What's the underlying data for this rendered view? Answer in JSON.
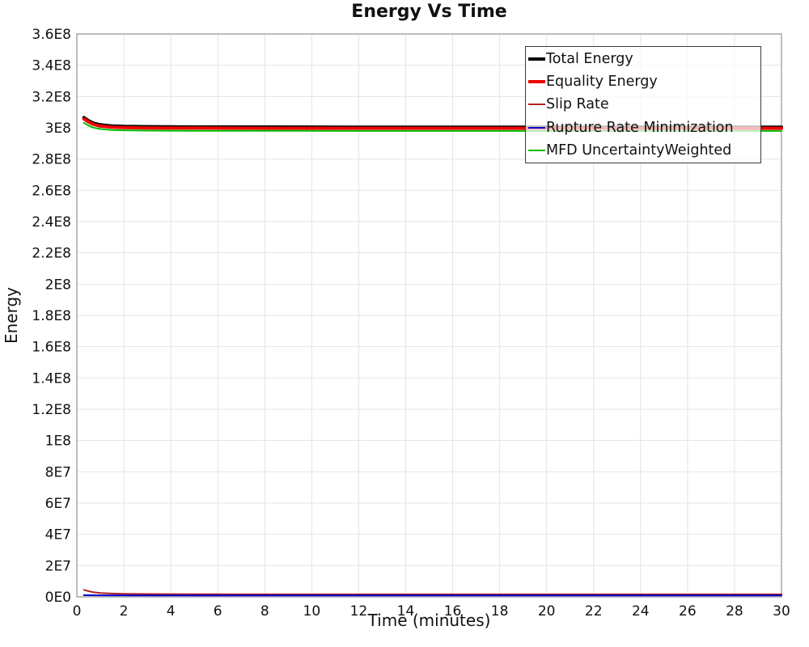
{
  "title": "Energy Vs Time",
  "chart_data": {
    "type": "line",
    "title": "Energy Vs Time",
    "xlabel": "Time (minutes)",
    "ylabel": "Energy",
    "xlim": [
      0,
      30
    ],
    "ylim": [
      0,
      360000000
    ],
    "grid": true,
    "legend_position": "top-right",
    "x_ticks": [
      {
        "v": 0,
        "label": "0"
      },
      {
        "v": 2,
        "label": "2"
      },
      {
        "v": 4,
        "label": "4"
      },
      {
        "v": 6,
        "label": "6"
      },
      {
        "v": 8,
        "label": "8"
      },
      {
        "v": 10,
        "label": "10"
      },
      {
        "v": 12,
        "label": "12"
      },
      {
        "v": 14,
        "label": "14"
      },
      {
        "v": 16,
        "label": "16"
      },
      {
        "v": 18,
        "label": "18"
      },
      {
        "v": 20,
        "label": "20"
      },
      {
        "v": 22,
        "label": "22"
      },
      {
        "v": 24,
        "label": "24"
      },
      {
        "v": 26,
        "label": "26"
      },
      {
        "v": 28,
        "label": "28"
      },
      {
        "v": 30,
        "label": "30"
      }
    ],
    "y_ticks": [
      {
        "v": 0,
        "label": "0E0"
      },
      {
        "v": 20000000,
        "label": "2E7"
      },
      {
        "v": 40000000,
        "label": "4E7"
      },
      {
        "v": 60000000,
        "label": "6E7"
      },
      {
        "v": 80000000,
        "label": "8E7"
      },
      {
        "v": 100000000,
        "label": "1E8"
      },
      {
        "v": 120000000,
        "label": "1.2E8"
      },
      {
        "v": 140000000,
        "label": "1.4E8"
      },
      {
        "v": 160000000,
        "label": "1.6E8"
      },
      {
        "v": 180000000,
        "label": "1.8E8"
      },
      {
        "v": 200000000,
        "label": "2E8"
      },
      {
        "v": 220000000,
        "label": "2.2E8"
      },
      {
        "v": 240000000,
        "label": "2.4E8"
      },
      {
        "v": 260000000,
        "label": "2.6E8"
      },
      {
        "v": 280000000,
        "label": "2.8E8"
      },
      {
        "v": 300000000,
        "label": "3E8"
      },
      {
        "v": 320000000,
        "label": "3.2E8"
      },
      {
        "v": 340000000,
        "label": "3.4E8"
      },
      {
        "v": 360000000,
        "label": "3.6E8"
      }
    ],
    "series": [
      {
        "name": "Total Energy",
        "color": "#000000",
        "width": 4,
        "points": [
          [
            0.3,
            306500000
          ],
          [
            0.5,
            304500000
          ],
          [
            0.7,
            303000000
          ],
          [
            1.0,
            301900000
          ],
          [
            1.5,
            301200000
          ],
          [
            2.0,
            300900000
          ],
          [
            3.0,
            300700000
          ],
          [
            5.0,
            300500000
          ],
          [
            8.0,
            300500000
          ],
          [
            12.0,
            300400000
          ],
          [
            20.0,
            300400000
          ],
          [
            30.0,
            300400000
          ]
        ]
      },
      {
        "name": "Equality Energy",
        "color": "#ee0000",
        "width": 4,
        "points": [
          [
            0.3,
            305700000
          ],
          [
            0.5,
            303700000
          ],
          [
            0.7,
            302200000
          ],
          [
            1.0,
            301100000
          ],
          [
            1.5,
            300400000
          ],
          [
            2.0,
            300100000
          ],
          [
            3.0,
            299900000
          ],
          [
            5.0,
            299800000
          ],
          [
            8.0,
            299700000
          ],
          [
            12.0,
            299700000
          ],
          [
            20.0,
            299700000
          ],
          [
            30.0,
            299700000
          ]
        ]
      },
      {
        "name": "Slip Rate",
        "color": "#b22222",
        "width": 2,
        "points": [
          [
            0.3,
            4500000
          ],
          [
            0.5,
            3600000
          ],
          [
            0.7,
            3000000
          ],
          [
            1.0,
            2500000
          ],
          [
            1.5,
            2100000
          ],
          [
            2.0,
            1900000
          ],
          [
            3.0,
            1800000
          ],
          [
            5.0,
            1700000
          ],
          [
            10.0,
            1600000
          ],
          [
            20.0,
            1600000
          ],
          [
            30.0,
            1600000
          ]
        ]
      },
      {
        "name": "Rupture Rate Minimization",
        "color": "#0000cd",
        "width": 2,
        "points": [
          [
            0.3,
            1100000
          ],
          [
            1.0,
            1000000
          ],
          [
            3.0,
            900000
          ],
          [
            10.0,
            900000
          ],
          [
            30.0,
            900000
          ]
        ]
      },
      {
        "name": "MFD UncertaintyWeighted",
        "color": "#00bb00",
        "width": 2,
        "points": [
          [
            0.3,
            303200000
          ],
          [
            0.5,
            301400000
          ],
          [
            0.7,
            300100000
          ],
          [
            1.0,
            299200000
          ],
          [
            1.5,
            298600000
          ],
          [
            2.0,
            298400000
          ],
          [
            3.0,
            298200000
          ],
          [
            5.0,
            298100000
          ],
          [
            8.0,
            298100000
          ],
          [
            12.0,
            298000000
          ],
          [
            20.0,
            298000000
          ],
          [
            30.0,
            298000000
          ]
        ]
      }
    ],
    "style": {
      "grid_color": "#e4e4e4",
      "frame_color": "#9a9a9a",
      "tick_label_color": "#111111",
      "tick_font_size": 17
    }
  }
}
